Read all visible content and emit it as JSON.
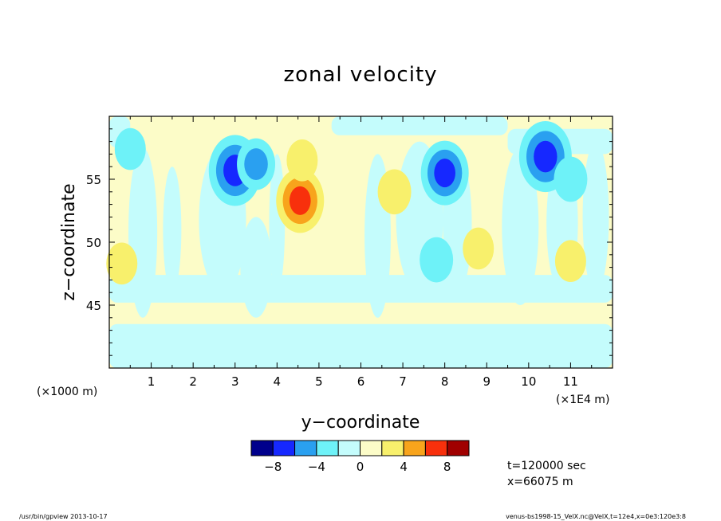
{
  "chart_data": {
    "type": "heatmap",
    "title": "zonal velocity",
    "xlabel": "y−coordinate",
    "ylabel": "z−coordinate",
    "x_unit": "(×1E4 m)",
    "y_unit": "(×1000 m)",
    "xlim": [
      0,
      12
    ],
    "ylim": [
      40,
      60
    ],
    "x_tick_labels": [
      "1",
      "2",
      "3",
      "4",
      "5",
      "6",
      "7",
      "8",
      "9",
      "10",
      "11"
    ],
    "y_tick_labels": [
      "45",
      "50",
      "55"
    ],
    "x_ticks": [
      1,
      2,
      3,
      4,
      5,
      6,
      7,
      8,
      9,
      10,
      11
    ],
    "y_ticks": [
      45,
      50,
      55
    ],
    "colorbar": {
      "levels": [
        -10,
        -8,
        -6,
        -4,
        -2,
        0,
        2,
        4,
        6,
        8,
        10
      ],
      "tick_labels": [
        "−8",
        "−4",
        "0",
        "4",
        "8"
      ],
      "tick_values": [
        -8,
        -4,
        0,
        4,
        8
      ],
      "colors": [
        "#00008c",
        "#1628ff",
        "#2aa0f0",
        "#6ef2f8",
        "#c4fcfc",
        "#fcfcc8",
        "#f8f06c",
        "#f8a41c",
        "#f8300c",
        "#a00000"
      ]
    },
    "annotations": {
      "time": "t=120000 sec",
      "position": "x=66075 m",
      "footer_left": "/usr/bin/gpview  2013-10-17",
      "footer_right": "venus-bs1998-15_VelX.nc@VelX,t=12e4,x=0e3:120e3:8"
    },
    "features": [
      {
        "x": 0.5,
        "y": 57.4,
        "value": -2.5
      },
      {
        "x": 3.0,
        "y": 55.7,
        "value": -7
      },
      {
        "x": 3.5,
        "y": 56.2,
        "value": -4
      },
      {
        "x": 4.55,
        "y": 53.3,
        "value": 6
      },
      {
        "x": 4.6,
        "y": 56.5,
        "value": 2.5
      },
      {
        "x": 8.0,
        "y": 55.5,
        "value": -6
      },
      {
        "x": 10.4,
        "y": 56.8,
        "value": -7
      },
      {
        "x": 11.0,
        "y": 55.0,
        "value": -3
      },
      {
        "x": 6.8,
        "y": 54.0,
        "value": 3
      },
      {
        "x": 8.8,
        "y": 49.5,
        "value": 2.5
      },
      {
        "x": 11.0,
        "y": 48.5,
        "value": 2.5
      },
      {
        "x": 7.8,
        "y": 48.6,
        "value": -3
      },
      {
        "x": 0.3,
        "y": 48.3,
        "value": 2.5
      }
    ]
  }
}
